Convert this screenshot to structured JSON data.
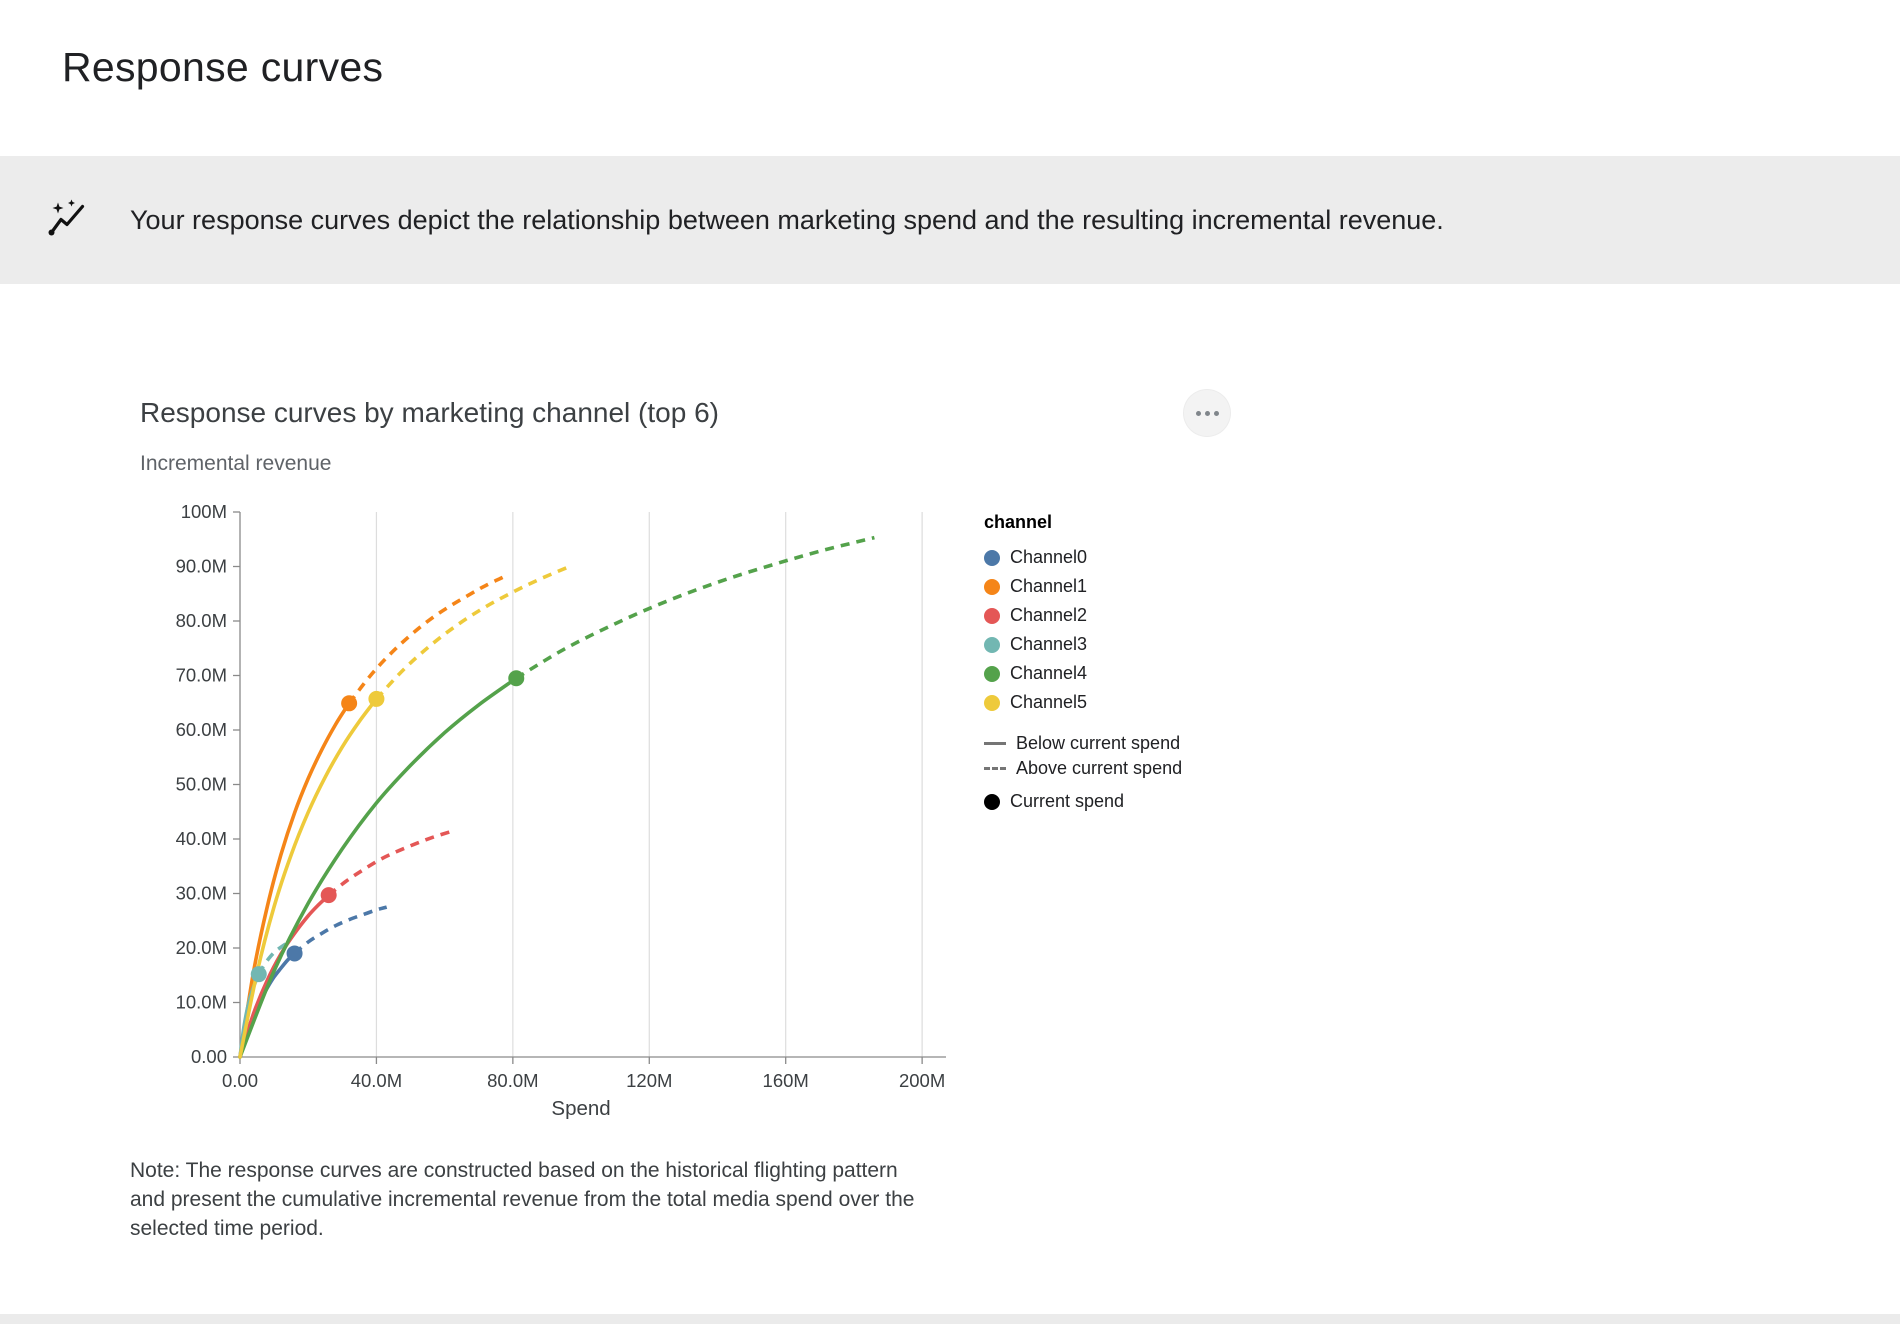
{
  "page": {
    "title": "Response curves"
  },
  "banner": {
    "icon": "auto-graph-icon",
    "text": "Your response curves depict the relationship between marketing spend and the resulting incremental revenue."
  },
  "menu": {
    "name": "more-options"
  },
  "chart_data": {
    "type": "line",
    "title": "Response curves by marketing channel (top 6)",
    "y_axis_title": "Incremental revenue",
    "xlabel": "Spend",
    "value_unit": "millions",
    "xlim": [
      0,
      207
    ],
    "ylim": [
      0,
      100
    ],
    "grid": "vertical-only",
    "x_ticks": [
      {
        "value": 0,
        "label": "0.00"
      },
      {
        "value": 40,
        "label": "40.0M"
      },
      {
        "value": 80,
        "label": "80.0M"
      },
      {
        "value": 120,
        "label": "120M"
      },
      {
        "value": 160,
        "label": "160M"
      },
      {
        "value": 200,
        "label": "200M"
      }
    ],
    "y_ticks": [
      {
        "value": 0,
        "label": "0.00"
      },
      {
        "value": 10,
        "label": "10.0M"
      },
      {
        "value": 20,
        "label": "20.0M"
      },
      {
        "value": 30,
        "label": "30.0M"
      },
      {
        "value": 40,
        "label": "40.0M"
      },
      {
        "value": 50,
        "label": "50.0M"
      },
      {
        "value": 60,
        "label": "60.0M"
      },
      {
        "value": 70,
        "label": "70.0M"
      },
      {
        "value": 80,
        "label": "80.0M"
      },
      {
        "value": 90,
        "label": "90.0M"
      },
      {
        "value": 100,
        "label": "100M"
      }
    ],
    "legend": {
      "title": "channel",
      "position": "right",
      "styles": [
        {
          "kind": "solid-line",
          "label": "Below current spend"
        },
        {
          "kind": "dashed-line",
          "label": "Above current spend"
        },
        {
          "kind": "dot",
          "label": "Current spend"
        }
      ]
    },
    "series": [
      {
        "name": "Channel0",
        "color": "#4c78a8",
        "current_spend": {
          "x": 16,
          "y": 19.0
        },
        "solid": [
          [
            0,
            0
          ],
          [
            2,
            4.3
          ],
          [
            4,
            7.7
          ],
          [
            6,
            10.4
          ],
          [
            8,
            12.7
          ],
          [
            10,
            14.7
          ],
          [
            12,
            16.3
          ],
          [
            14,
            17.8
          ],
          [
            16,
            19.0
          ]
        ],
        "dashed": [
          [
            16,
            19.0
          ],
          [
            20,
            21.1
          ],
          [
            24,
            22.7
          ],
          [
            28,
            24.1
          ],
          [
            32,
            25.2
          ],
          [
            36,
            26.1
          ],
          [
            40,
            27.0
          ],
          [
            43,
            27.5
          ]
        ]
      },
      {
        "name": "Channel1",
        "color": "#f58518",
        "current_spend": {
          "x": 32,
          "y": 64.9
        },
        "solid": [
          [
            0,
            0
          ],
          [
            4,
            15.7
          ],
          [
            8,
            27.6
          ],
          [
            12,
            37.1
          ],
          [
            16,
            44.8
          ],
          [
            20,
            51.1
          ],
          [
            24,
            56.4
          ],
          [
            28,
            61.0
          ],
          [
            32,
            64.9
          ]
        ],
        "dashed": [
          [
            32,
            64.9
          ],
          [
            38,
            69.8
          ],
          [
            44,
            73.9
          ],
          [
            50,
            77.4
          ],
          [
            56,
            80.4
          ],
          [
            62,
            82.9
          ],
          [
            68,
            85.1
          ],
          [
            72,
            86.5
          ],
          [
            77,
            88.0
          ]
        ]
      },
      {
        "name": "Channel2",
        "color": "#e45756",
        "current_spend": {
          "x": 26,
          "y": 29.7
        },
        "solid": [
          [
            0,
            0
          ],
          [
            4,
            8.0
          ],
          [
            8,
            14.1
          ],
          [
            12,
            18.9
          ],
          [
            16,
            22.7
          ],
          [
            20,
            25.9
          ],
          [
            23,
            27.9
          ],
          [
            26,
            29.7
          ]
        ],
        "dashed": [
          [
            26,
            29.7
          ],
          [
            31,
            32.2
          ],
          [
            36,
            34.3
          ],
          [
            41,
            36.2
          ],
          [
            46,
            37.7
          ],
          [
            51,
            39.0
          ],
          [
            56,
            40.2
          ],
          [
            63,
            41.6
          ]
        ]
      },
      {
        "name": "Channel3",
        "color": "#72b7b2",
        "current_spend": {
          "x": 5.5,
          "y": 15.2
        },
        "solid": [
          [
            0,
            0
          ],
          [
            1,
            4.9
          ],
          [
            2,
            8.4
          ],
          [
            3,
            11.0
          ],
          [
            4,
            12.9
          ],
          [
            5,
            14.5
          ],
          [
            5.5,
            15.2
          ]
        ],
        "dashed": [
          [
            5.5,
            15.2
          ],
          [
            7,
            16.8
          ],
          [
            9,
            18.5
          ],
          [
            11,
            19.7
          ],
          [
            14,
            21.0
          ]
        ]
      },
      {
        "name": "Channel4",
        "color": "#54a24b",
        "current_spend": {
          "x": 81,
          "y": 69.5
        },
        "solid": [
          [
            0,
            0
          ],
          [
            10,
            15.8
          ],
          [
            20,
            28.2
          ],
          [
            30,
            38.2
          ],
          [
            40,
            46.6
          ],
          [
            50,
            53.5
          ],
          [
            60,
            59.5
          ],
          [
            70,
            64.6
          ],
          [
            81,
            69.5
          ]
        ],
        "dashed": [
          [
            81,
            69.5
          ],
          [
            95,
            74.8
          ],
          [
            110,
            79.5
          ],
          [
            125,
            83.6
          ],
          [
            140,
            87.1
          ],
          [
            155,
            90.1
          ],
          [
            170,
            92.8
          ],
          [
            186,
            95.3
          ]
        ]
      },
      {
        "name": "Channel5",
        "color": "#eeca3b",
        "current_spend": {
          "x": 40,
          "y": 65.7
        },
        "solid": [
          [
            0,
            0
          ],
          [
            5,
            15.5
          ],
          [
            10,
            27.6
          ],
          [
            15,
            37.1
          ],
          [
            20,
            44.9
          ],
          [
            25,
            51.4
          ],
          [
            30,
            56.9
          ],
          [
            35,
            61.6
          ],
          [
            40,
            65.7
          ]
        ],
        "dashed": [
          [
            40,
            65.7
          ],
          [
            48,
            71.1
          ],
          [
            56,
            75.6
          ],
          [
            64,
            79.4
          ],
          [
            72,
            82.6
          ],
          [
            80,
            85.3
          ],
          [
            88,
            87.7
          ],
          [
            97,
            90.1
          ]
        ]
      }
    ],
    "note": "Note: The response curves are constructed based on the historical flighting pattern and present the cumulative incremental revenue from the total media spend over the selected time period."
  }
}
